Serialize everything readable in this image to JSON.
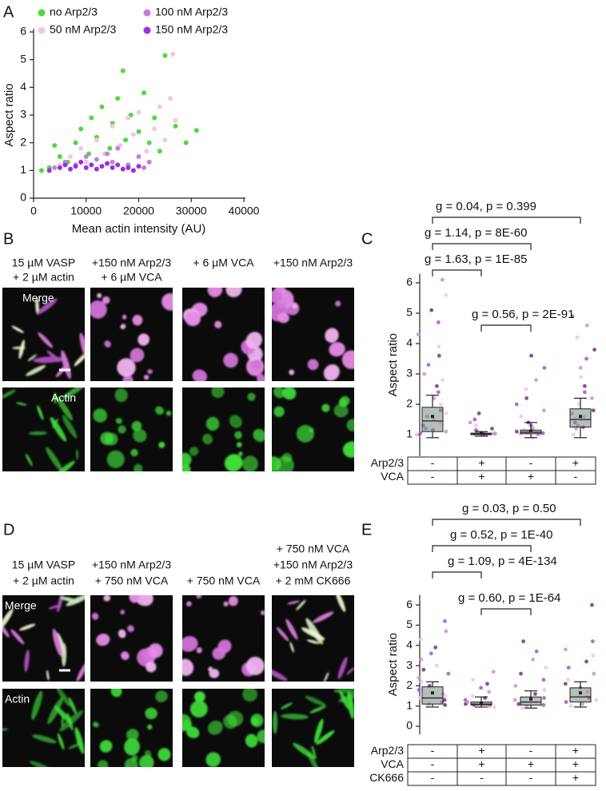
{
  "panel_letters": [
    "A",
    "B",
    "C",
    "D",
    "E"
  ],
  "chart_data": [
    {
      "type": "scatter",
      "xlabel": "Mean actin intensity (AU)",
      "ylabel": "Aspect ratio",
      "xlim": [
        0,
        40000
      ],
      "ylim": [
        0,
        6
      ],
      "xticks": [
        0,
        10000,
        20000,
        30000,
        40000
      ],
      "yticks": [
        0,
        1,
        2,
        3,
        4,
        5,
        6
      ],
      "legend": "top",
      "series": [
        {
          "name": "no Arp2/3",
          "color": "#4fd93f",
          "x": [
            1500,
            3000,
            4000,
            5000,
            6500,
            8000,
            9000,
            10500,
            11000,
            12000,
            13000,
            14500,
            15000,
            16000,
            17000,
            17500,
            18500,
            20000,
            21000,
            22000,
            23000,
            24000,
            25000,
            27000,
            29000,
            31000
          ],
          "values": [
            1.0,
            1.1,
            1.9,
            1.5,
            1.3,
            2.0,
            2.5,
            1.6,
            2.9,
            2.2,
            3.3,
            1.8,
            2.7,
            3.6,
            4.6,
            2.1,
            3.0,
            2.4,
            3.8,
            2.0,
            2.9,
            1.7,
            5.15,
            2.6,
            2.0,
            2.45
          ]
        },
        {
          "name": "50 nM Arp2/3",
          "color": "#f5c6de",
          "x": [
            5000,
            7000,
            9000,
            10000,
            12000,
            13500,
            15000,
            16500,
            18000,
            19000,
            20000,
            21500,
            23000,
            24000,
            25000,
            26000,
            26500,
            27000
          ],
          "values": [
            1.2,
            1.5,
            1.8,
            1.3,
            2.1,
            1.6,
            2.6,
            1.9,
            2.9,
            2.3,
            3.1,
            1.7,
            2.5,
            3.3,
            2.1,
            3.6,
            5.2,
            2.8
          ]
        },
        {
          "name": "100 nM Arp2/3",
          "color": "#c77ddb",
          "x": [
            4000,
            6000,
            8000,
            10000,
            12000,
            14000,
            15000,
            16000,
            18000,
            20000,
            21000,
            22000
          ],
          "values": [
            1.1,
            1.3,
            1.2,
            1.5,
            1.4,
            1.6,
            1.3,
            1.8,
            1.2,
            1.5,
            1.1,
            1.3
          ]
        },
        {
          "name": "150 nM Arp2/3",
          "color": "#9b30e0",
          "x": [
            3000,
            5000,
            6000,
            7000,
            8000,
            9000,
            10000,
            11000,
            12000,
            13000,
            14000,
            15000,
            16000,
            17000,
            18000,
            19000,
            20000
          ],
          "values": [
            1.0,
            1.1,
            1.2,
            1.05,
            1.15,
            1.3,
            1.1,
            1.2,
            1.05,
            1.15,
            1.25,
            1.1,
            1.2,
            1.05,
            1.1,
            1.0,
            1.15
          ]
        }
      ]
    },
    {
      "type": "box",
      "ylabel": "Aspect ratio",
      "ylim": [
        0.3,
        6.3
      ],
      "yticks": [
        1,
        2,
        3,
        4,
        5,
        6
      ],
      "box_color": "#8e9c98",
      "point_colors": [
        "#f2c4e2",
        "#d98ad8",
        "#b24fcf",
        "#7b2a8e"
      ],
      "groups": [
        {
          "whisker_low": 0.9,
          "q1": 1.1,
          "median": 1.45,
          "q3": 1.9,
          "whisker_high": 2.3,
          "mean": 1.6,
          "points": [
            1.0,
            1.1,
            1.2,
            1.3,
            1.4,
            1.5,
            1.6,
            1.8,
            2.0,
            2.2,
            2.4,
            2.6,
            2.8,
            3.0,
            3.3,
            3.6,
            3.9,
            4.3,
            4.7,
            5.1,
            5.6,
            6.1,
            1.05,
            1.15,
            1.7
          ]
        },
        {
          "whisker_low": 0.95,
          "q1": 1.0,
          "median": 1.02,
          "q3": 1.05,
          "whisker_high": 1.1,
          "mean": 1.04,
          "points": [
            0.98,
            1.0,
            1.02,
            1.04,
            1.06,
            1.1,
            1.15,
            1.2,
            1.3,
            1.4,
            1.5,
            1.7,
            1.01,
            1.03
          ]
        },
        {
          "whisker_low": 0.9,
          "q1": 1.03,
          "median": 1.08,
          "q3": 1.15,
          "whisker_high": 1.4,
          "mean": 1.12,
          "points": [
            0.9,
            1.0,
            1.05,
            1.1,
            1.15,
            1.2,
            1.3,
            1.4,
            1.6,
            1.8,
            2.0,
            2.2,
            2.5,
            2.8,
            3.2,
            3.6,
            1.02,
            1.08
          ]
        },
        {
          "whisker_low": 0.9,
          "q1": 1.25,
          "median": 1.5,
          "q3": 1.85,
          "whisker_high": 2.2,
          "mean": 1.6,
          "points": [
            1.0,
            1.2,
            1.3,
            1.4,
            1.5,
            1.6,
            1.7,
            1.8,
            2.0,
            2.2,
            2.4,
            2.6,
            2.9,
            3.2,
            3.5,
            3.8,
            4.2,
            4.6,
            4.9,
            1.25,
            1.55
          ]
        }
      ],
      "annotations": [
        "g = 0.04, p = 0.399",
        "g = 1.14, p = 8E-60",
        "g = 1.63, p = 1E-85",
        "g = 0.56, p = 2E-91"
      ],
      "condition_table": {
        "rows": [
          {
            "name": "Arp2/3",
            "values": [
              "-",
              "+",
              "-",
              "+"
            ]
          },
          {
            "name": "VCA",
            "values": [
              "-",
              "+",
              "+",
              "-"
            ]
          }
        ]
      }
    },
    {
      "type": "box",
      "ylabel": "Aspect ratio",
      "ylim": [
        -0.4,
        6.5
      ],
      "yticks": [
        0,
        1,
        2,
        3,
        4,
        5,
        6
      ],
      "box_color": "#8e9c98",
      "point_colors": [
        "#f2c4e2",
        "#d98ad8",
        "#b24fcf",
        "#7b2a8e"
      ],
      "groups": [
        {
          "whisker_low": 0.95,
          "q1": 1.1,
          "median": 1.4,
          "q3": 1.95,
          "whisker_high": 2.2,
          "mean": 1.65,
          "points": [
            1.0,
            1.1,
            1.2,
            1.3,
            1.4,
            1.6,
            1.8,
            2.0,
            2.2,
            2.4,
            2.6,
            2.8,
            3.0,
            3.3,
            3.6,
            3.9,
            4.3,
            4.7,
            5.2,
            1.05,
            1.5
          ]
        },
        {
          "whisker_low": 0.95,
          "q1": 1.05,
          "median": 1.1,
          "q3": 1.2,
          "whisker_high": 1.45,
          "mean": 1.15,
          "points": [
            0.95,
            1.0,
            1.05,
            1.1,
            1.15,
            1.2,
            1.3,
            1.4,
            1.5,
            1.7,
            1.9,
            2.1,
            2.3,
            2.7
          ]
        },
        {
          "whisker_low": 0.9,
          "q1": 1.05,
          "median": 1.2,
          "q3": 1.45,
          "whisker_high": 1.75,
          "mean": 1.35,
          "points": [
            0.9,
            1.0,
            1.05,
            1.1,
            1.2,
            1.3,
            1.4,
            1.6,
            1.8,
            2.0,
            2.3,
            2.6,
            2.9,
            3.3,
            3.7,
            4.2,
            1.15
          ]
        },
        {
          "whisker_low": 0.95,
          "q1": 1.2,
          "median": 1.45,
          "q3": 1.9,
          "whisker_high": 2.2,
          "mean": 1.65,
          "points": [
            1.0,
            1.1,
            1.2,
            1.4,
            1.5,
            1.7,
            1.9,
            2.1,
            2.3,
            2.6,
            2.9,
            3.2,
            3.5,
            3.8,
            4.2,
            6.0,
            1.3
          ]
        }
      ],
      "annotations": [
        "g = 0.03, p = 0.50",
        "g = 0.52, p = 1E-40",
        "g = 1.09, p = 4E-134",
        "g = 0.60, p = 1E-64"
      ],
      "condition_table": {
        "rows": [
          {
            "name": "Arp2/3",
            "values": [
              "-",
              "+",
              "-",
              "+"
            ]
          },
          {
            "name": "VCA",
            "values": [
              "-",
              "+",
              "+",
              "+"
            ]
          },
          {
            "name": "CK666",
            "values": [
              "-",
              "-",
              "-",
              "+"
            ]
          }
        ]
      }
    }
  ],
  "micrographs": [
    {
      "headers": [
        [
          "15 µM VASP",
          "+ 2 µM actin"
        ],
        [
          "+150 nM Arp2/3",
          "+ 6 µM VCA"
        ],
        [
          "+ 6 µM VCA"
        ],
        [
          "+150 nM Arp2/3"
        ]
      ],
      "row_labels": [
        "Merge",
        "Actin"
      ]
    },
    {
      "headers": [
        [
          "15 µM VASP",
          "+ 2 µM actin"
        ],
        [
          "+150 nM Arp2/3",
          "+ 750 nM VCA"
        ],
        [
          "+ 750 nM VCA"
        ],
        [
          "+ 750 nM VCA",
          "+150 nM Arp2/3",
          "+ 2 mM CK666"
        ]
      ],
      "row_labels": [
        "Merge",
        "Actin"
      ]
    }
  ]
}
